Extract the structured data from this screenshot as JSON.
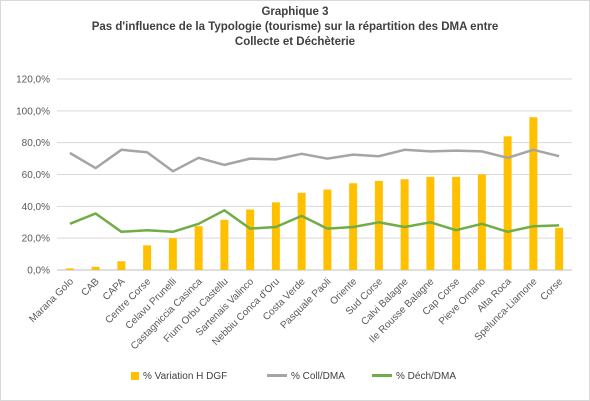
{
  "chart_data": {
    "type": "bar",
    "title_lines": [
      "Graphique 3",
      "Pas d'influence de la Typologie (tourisme) sur la répartition des DMA entre",
      "Collecte et Déchèterie"
    ],
    "categories": [
      "Marana Golo",
      "CAB",
      "CAPA",
      "Centre Corse",
      "Celavu Prunelli",
      "Castagniccia Casinca",
      "Fium Orbu Castellu",
      "Sartenais Valinco",
      "Nebbiu Conca d'Oru",
      "Costa Verde",
      "Pasquale Paoli",
      "Oriente",
      "Sud Corse",
      "Calvi Balagne",
      "Ile Rousse Balagne",
      "Cap Corse",
      "Pieve Ornano",
      "Alta Roca",
      "Spelunca-Liamone",
      "Corse"
    ],
    "y_tick_labels": [
      "0,0%",
      "20,0%",
      "40,0%",
      "60,0%",
      "80,0%",
      "100,0%",
      "120,0%"
    ],
    "ylim": [
      0,
      120
    ],
    "grid": true,
    "legend_position": "bottom",
    "series": [
      {
        "name": "% Variation H DGF",
        "kind": "bar",
        "color": "#ffc000",
        "values": [
          1,
          2,
          5.5,
          15.5,
          20,
          27.5,
          31.5,
          38,
          42.5,
          48.5,
          50.5,
          54.5,
          56,
          57,
          58.5,
          58.5,
          60,
          84,
          96,
          26.5
        ]
      },
      {
        "name": "% Coll/DMA",
        "kind": "line",
        "color": "#a5a5a5",
        "values": [
          73.5,
          64,
          75.5,
          74,
          62,
          70.5,
          66,
          70,
          69.5,
          73,
          70,
          72.5,
          71.5,
          75.5,
          74.5,
          75,
          74.5,
          70.5,
          75.5,
          71.5
        ]
      },
      {
        "name": "% Déch/DMA",
        "kind": "line",
        "color": "#70ad47",
        "values": [
          29,
          35.5,
          24,
          25,
          24,
          29,
          37.5,
          26,
          27,
          34,
          26,
          27,
          30,
          27,
          30,
          25,
          29,
          24,
          27.5,
          28
        ]
      }
    ]
  }
}
